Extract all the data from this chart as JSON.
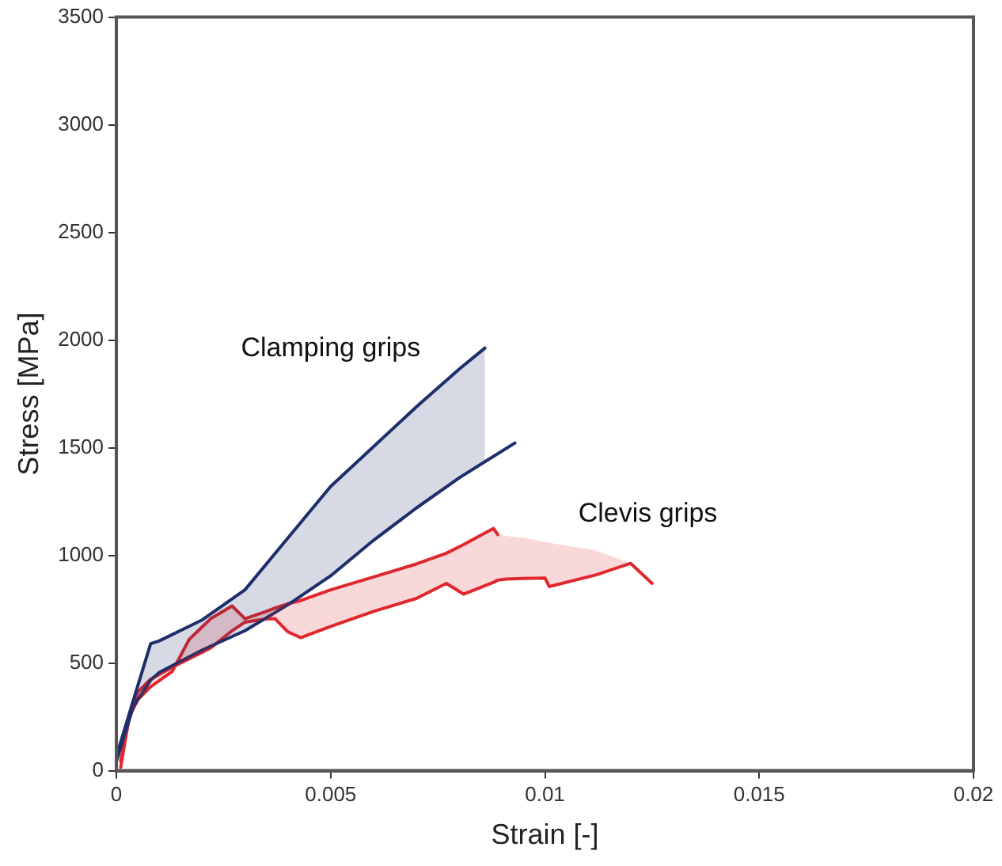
{
  "chart_data": {
    "type": "line",
    "xlabel": "Strain [-]",
    "ylabel": "Stress [MPa]",
    "xlim": [
      0,
      0.02
    ],
    "xticks": [
      0,
      0.005,
      0.01,
      0.015,
      0.02
    ],
    "ylim": [
      0,
      3500
    ],
    "yticks": [
      0,
      500,
      1000,
      1500,
      2000,
      2500,
      3000,
      3500
    ],
    "grid": false,
    "legend": false,
    "marker": "none",
    "series": [
      {
        "type": "line",
        "color": "#1f2f6b",
        "x": [
          0,
          0.0004,
          0.0008,
          0.001,
          0.002,
          0.003,
          0.004,
          0.005,
          0.006,
          0.007,
          0.008,
          0.0086
        ],
        "values": [
          66,
          330,
          590,
          603,
          700,
          840,
          1080,
          1320,
          1505,
          1690,
          1865,
          1963
        ],
        "upper": [
          66,
          330,
          590,
          603,
          700,
          840,
          1080,
          1320,
          1505,
          1690,
          1865,
          1963
        ],
        "lower": [
          44,
          300,
          420,
          456,
          560,
          650,
          770,
          905,
          1070,
          1220,
          1360,
          1435
        ]
      },
      {
        "type": "line",
        "color": "#1f2f6b",
        "x": [
          0,
          0.0004,
          0.0008,
          0.001,
          0.002,
          0.003,
          0.004,
          0.005,
          0.006,
          0.007,
          0.008,
          0.0086,
          0.0093
        ],
        "values": [
          44,
          300,
          420,
          456,
          560,
          650,
          770,
          905,
          1070,
          1220,
          1360,
          1435,
          1522
        ]
      },
      {
        "type": "line",
        "color": "#e0282e",
        "x": [
          0.0001,
          0.0003,
          0.0005,
          0.0008,
          0.0013,
          0.0017,
          0.0022,
          0.0027,
          0.003,
          0.0035,
          0.0037,
          0.004,
          0.0043,
          0.005,
          0.006,
          0.007,
          0.0077,
          0.0081,
          0.0088,
          0.0089,
          0.0091,
          0.0095,
          0.01,
          0.0101,
          0.0112,
          0.012
        ],
        "values": [
          44,
          250,
          330,
          390,
          460,
          610,
          706,
          765,
          706,
          740,
          755,
          775,
          790,
          840,
          900,
          960,
          1010,
          1050,
          1125,
          1096,
          null,
          null,
          null,
          null,
          null,
          null
        ],
        "upper": [
          44,
          250,
          330,
          390,
          460,
          610,
          706,
          765,
          706,
          740,
          755,
          775,
          790,
          840,
          900,
          960,
          1010,
          1050,
          1125,
          1096,
          1090,
          1081,
          1062,
          1058,
          1022,
          963
        ],
        "lower": [
          15,
          250,
          365,
          425,
          480,
          520,
          570,
          650,
          690,
          705,
          706,
          645,
          618,
          670,
          740,
          800,
          870,
          820,
          875,
          885,
          890,
          893,
          895,
          855,
          910,
          963
        ]
      },
      {
        "type": "line",
        "color": "#e0282e",
        "x": [
          0.0001,
          0.0003,
          0.0005,
          0.0008,
          0.0013,
          0.0017,
          0.0022,
          0.0027,
          0.003,
          0.0035,
          0.0037,
          0.004,
          0.0043,
          0.005,
          0.006,
          0.007,
          0.0077,
          0.0081,
          0.0088,
          0.0089,
          0.0091,
          0.0095,
          0.01,
          0.0101,
          0.0112,
          0.012,
          0.0125
        ],
        "values": [
          15,
          250,
          365,
          425,
          480,
          520,
          570,
          650,
          690,
          705,
          706,
          645,
          618,
          670,
          740,
          800,
          870,
          820,
          875,
          885,
          890,
          893,
          895,
          855,
          910,
          963,
          870
        ]
      }
    ],
    "annotations": [
      "Clamping grips",
      "Clevis grips"
    ]
  }
}
